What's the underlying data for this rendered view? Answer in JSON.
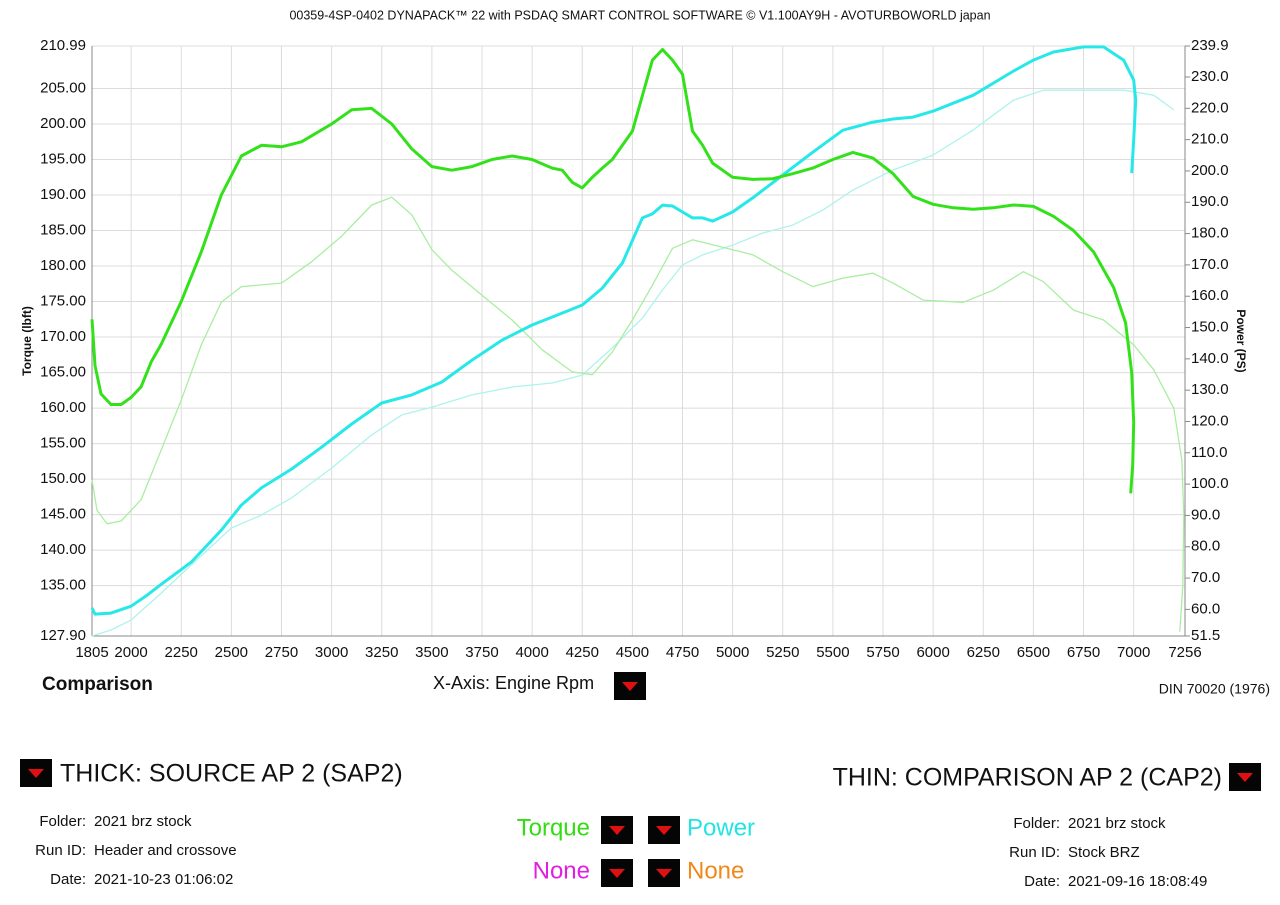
{
  "chart_data": {
    "type": "line",
    "title": "00359-4SP-0402 DYNAPACK™ 22 with PSDAQ SMART CONTROL SOFTWARE © V1.100AY9H - AVOTURBOWORLD japan",
    "x_label": "X-Axis: Engine Rpm",
    "y_label": "Torque (lbft)",
    "y2_label": "Power (PS)",
    "xlim": [
      1805,
      7256
    ],
    "xticks": [
      1805,
      2000,
      2250,
      2500,
      2750,
      3000,
      3250,
      3500,
      3750,
      4000,
      4250,
      4500,
      4750,
      5000,
      5250,
      5500,
      5750,
      6000,
      6250,
      6500,
      6750,
      7000,
      7256
    ],
    "ylim": [
      127.9,
      210.99
    ],
    "yticks": [
      210.99,
      {
        "value": 205,
        "label": "205.00"
      },
      {
        "value": 200,
        "label": "200.00"
      },
      {
        "value": 195,
        "label": "195.00"
      },
      {
        "value": 190,
        "label": "190.00"
      },
      {
        "value": 185,
        "label": "185.00"
      },
      {
        "value": 180,
        "label": "180.00"
      },
      {
        "value": 175,
        "label": "175.00"
      },
      {
        "value": 170,
        "label": "170.00"
      },
      {
        "value": 165,
        "label": "165.00"
      },
      {
        "value": 160,
        "label": "160.00"
      },
      {
        "value": 155,
        "label": "155.00"
      },
      {
        "value": 150,
        "label": "150.00"
      },
      {
        "value": 145,
        "label": "145.00"
      },
      {
        "value": 140,
        "label": "140.00"
      },
      {
        "value": 135,
        "label": "135.00"
      },
      {
        "value": 127.9,
        "label": "127.90"
      }
    ],
    "y2lim": [
      51.5,
      239.9
    ],
    "y2ticks": [
      239.9,
      {
        "value": 230,
        "label": "230.0"
      },
      {
        "value": 220,
        "label": "220.0"
      },
      {
        "value": 210,
        "label": "210.0"
      },
      {
        "value": 200,
        "label": "200.0"
      },
      {
        "value": 190,
        "label": "190.0"
      },
      {
        "value": 180,
        "label": "180.0"
      },
      {
        "value": 170,
        "label": "170.0"
      },
      {
        "value": 160,
        "label": "160.0"
      },
      {
        "value": 150,
        "label": "150.0"
      },
      {
        "value": 140,
        "label": "140.0"
      },
      {
        "value": 130,
        "label": "130.0"
      },
      {
        "value": 120,
        "label": "120.0"
      },
      {
        "value": 110,
        "label": "110.0"
      },
      {
        "value": 100,
        "label": "100.0"
      },
      {
        "value": 90,
        "label": "90.0"
      },
      {
        "value": 80,
        "label": "80.0"
      },
      {
        "value": 70,
        "label": "70.0"
      },
      {
        "value": 60,
        "label": "60.0"
      },
      51.5
    ],
    "grid": true,
    "series": [
      {
        "color": "#33e11a",
        "x": [
          1805,
          1820,
          1850,
          1900,
          1950,
          2000,
          2050,
          2100,
          2150,
          2250,
          2350,
          2450,
          2550,
          2650,
          2750,
          2850,
          3000,
          3100,
          3200,
          3300,
          3400,
          3500,
          3600,
          3700,
          3800,
          3900,
          4000,
          4100,
          4150,
          4200,
          4250,
          4300,
          4350,
          4400,
          4500,
          4550,
          4600,
          4650,
          4700,
          4750,
          4800,
          4850,
          4900,
          5000,
          5100,
          5200,
          5300,
          5400,
          5500,
          5600,
          5700,
          5800,
          5900,
          6000,
          6100,
          6200,
          6300,
          6400,
          6500,
          6600,
          6700,
          6800,
          6900,
          6960,
          6990,
          7000,
          6995,
          6985
        ],
        "values": [
          172.5,
          166,
          162,
          160.5,
          160.5,
          161.5,
          163,
          166.5,
          169,
          175,
          182,
          190,
          195.5,
          197,
          196.8,
          197.5,
          200,
          202,
          202.2,
          200,
          196.5,
          194,
          193.5,
          194,
          195,
          195.5,
          195,
          193.8,
          193.5,
          191.8,
          191,
          192.5,
          193.8,
          195,
          199,
          204,
          209,
          210.5,
          209,
          207,
          199,
          197,
          194.5,
          192.5,
          192.2,
          192.3,
          193,
          193.8,
          195,
          196,
          195.2,
          193,
          189.8,
          188.7,
          188.2,
          188,
          188.2,
          188.6,
          188.4,
          187,
          185,
          182,
          177,
          172,
          165,
          158,
          152,
          148
        ]
      },
      {
        "color": "#27e8e8",
        "axis": "y2",
        "x": [
          1805,
          1820,
          1900,
          2000,
          2075,
          2150,
          2300,
          2450,
          2550,
          2650,
          2800,
          2950,
          3100,
          3250,
          3400,
          3550,
          3700,
          3850,
          4000,
          4150,
          4250,
          4350,
          4450,
          4550,
          4600,
          4650,
          4700,
          4800,
          4850,
          4900,
          5000,
          5100,
          5250,
          5400,
          5550,
          5700,
          5800,
          5900,
          6000,
          6200,
          6400,
          6500,
          6600,
          6750,
          6850,
          6950,
          7000,
          7010,
          7000,
          6990
        ],
        "values": [
          60.4,
          58.5,
          58.8,
          61,
          64.3,
          68,
          75.1,
          85.3,
          93.3,
          98.8,
          104.8,
          111.8,
          119.2,
          125.9,
          128.5,
          132.6,
          139.6,
          146,
          150.8,
          154.6,
          157.2,
          162.6,
          170.6,
          185,
          186.3,
          189.1,
          188.8,
          185,
          185,
          184,
          186.9,
          191.4,
          198.7,
          206,
          213,
          215.6,
          216.6,
          217.2,
          219.1,
          224.2,
          231.9,
          235.4,
          238,
          239.6,
          239.6,
          235.4,
          229,
          222.6,
          209.9,
          199.3
        ]
      },
      {
        "color": "#a9eea0",
        "x": [
          1805,
          1830,
          1880,
          1950,
          2050,
          2150,
          2250,
          2350,
          2450,
          2550,
          2750,
          2900,
          3050,
          3200,
          3300,
          3400,
          3500,
          3600,
          3750,
          3900,
          4050,
          4200,
          4300,
          4400,
          4500,
          4600,
          4700,
          4800,
          4900,
          5100,
          5250,
          5400,
          5550,
          5700,
          5800,
          5950,
          6150,
          6300,
          6450,
          6550,
          6700,
          6850,
          7000,
          7100,
          7200,
          7240,
          7250,
          7245,
          7230
        ],
        "values": [
          149.9,
          145.6,
          143.7,
          144.1,
          147.1,
          154.1,
          161.1,
          168.9,
          174.9,
          177.1,
          177.6,
          180.6,
          184.2,
          188.6,
          189.7,
          187.2,
          182.3,
          179.4,
          175.9,
          172.4,
          168.2,
          165.1,
          164.7,
          167.9,
          172.4,
          177.3,
          182.5,
          183.7,
          183,
          181.6,
          179.2,
          177.1,
          178.3,
          179,
          177.6,
          175.2,
          174.9,
          176.6,
          179.2,
          177.8,
          173.8,
          172.4,
          168.9,
          165.4,
          160,
          152.7,
          145,
          135,
          128.5
        ]
      },
      {
        "color": "#aef3ec",
        "axis": "y2",
        "x": [
          1805,
          1900,
          2000,
          2150,
          2300,
          2500,
          2650,
          2800,
          3000,
          3200,
          3350,
          3500,
          3700,
          3900,
          4100,
          4250,
          4400,
          4550,
          4650,
          4750,
          4850,
          5000,
          5150,
          5300,
          5450,
          5600,
          5800,
          6000,
          6200,
          6400,
          6550,
          6750,
          6950,
          7100,
          7200
        ],
        "values": [
          51.5,
          53.4,
          56.6,
          65.2,
          74.2,
          86,
          90.1,
          95.6,
          105.1,
          115.7,
          122.1,
          124.6,
          128.5,
          131,
          132.3,
          134.8,
          143.5,
          153,
          162,
          170,
          173.2,
          176.3,
          180.2,
          182.7,
          187.5,
          193.9,
          200.3,
          205.1,
          213.1,
          222.6,
          225.8,
          225.8,
          225.8,
          224.2,
          219.5
        ]
      }
    ]
  },
  "panel": {
    "mode": "Comparison",
    "standard": "DIN 70020 (1976)",
    "source": {
      "label": "THICK: SOURCE AP 2 (SAP2)",
      "fields": [
        {
          "label": "Folder:",
          "value": "2021 brz stock"
        },
        {
          "label": "Run ID:",
          "value": "Header and crossove"
        },
        {
          "label": "Date:",
          "value": "2021-10-23 01:06:02"
        }
      ]
    },
    "comparison": {
      "label": "THIN: COMPARISON AP 2 (CAP2)",
      "fields": [
        {
          "label": "Folder:",
          "value": "2021 brz stock"
        },
        {
          "label": "Run ID:",
          "value": "Stock BRZ"
        },
        {
          "label": "Date:",
          "value": "2021-09-16 18:08:49"
        }
      ]
    },
    "channels": [
      {
        "label": "Torque",
        "color": "#33dd11"
      },
      {
        "label": "Power",
        "color": "#22e4e4"
      },
      {
        "label": "None",
        "color": "#e21ee2"
      },
      {
        "label": "None",
        "color": "#f0881a"
      }
    ]
  }
}
